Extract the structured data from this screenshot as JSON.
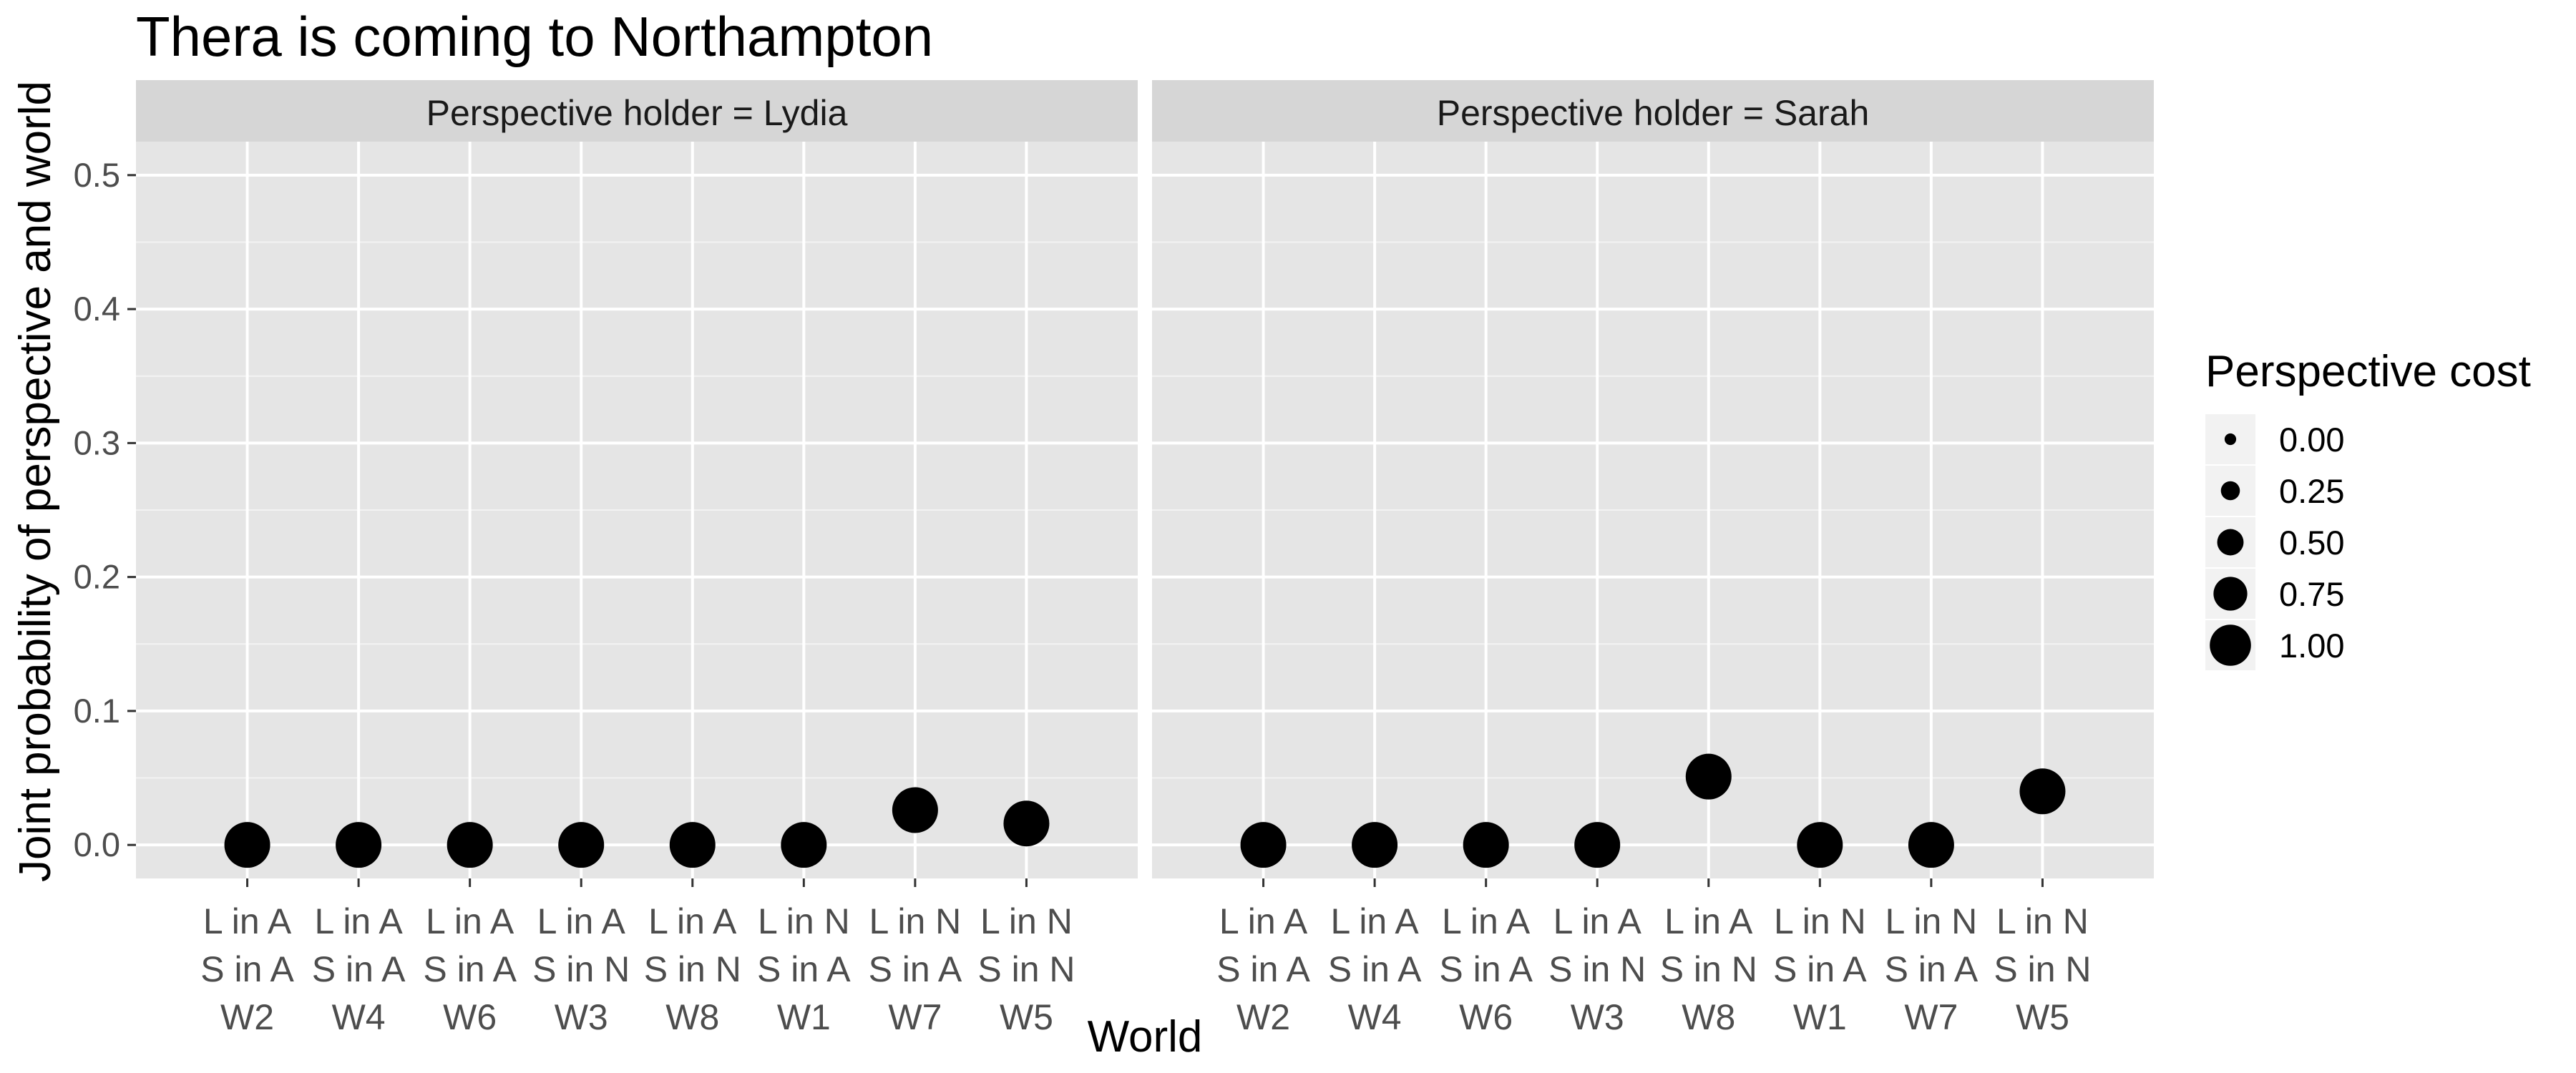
{
  "chart_data": {
    "type": "scatter",
    "title": "Thera is coming to Northampton",
    "xlabel": "World",
    "ylabel": "Joint probability of perspective and world",
    "ylim": [
      -0.025,
      0.525
    ],
    "yticks": [
      "0.0",
      "0.1",
      "0.2",
      "0.3",
      "0.4",
      "0.5"
    ],
    "ytick_values": [
      0.0,
      0.1,
      0.2,
      0.3,
      0.4,
      0.5
    ],
    "grid": true,
    "categories": [
      {
        "line1": "L in A",
        "line2": "S in A",
        "line3": "W2"
      },
      {
        "line1": "L in A",
        "line2": "S in A",
        "line3": "W4"
      },
      {
        "line1": "L in A",
        "line2": "S in A",
        "line3": "W6"
      },
      {
        "line1": "L in A",
        "line2": "S in N",
        "line3": "W3"
      },
      {
        "line1": "L in A",
        "line2": "S in N",
        "line3": "W8"
      },
      {
        "line1": "L in N",
        "line2": "S in A",
        "line3": "W1"
      },
      {
        "line1": "L in N",
        "line2": "S in A",
        "line3": "W7"
      },
      {
        "line1": "L in N",
        "line2": "S in N",
        "line3": "W5"
      }
    ],
    "panels": [
      {
        "strip": "Perspective holder = Lydia",
        "points": [
          {
            "x": "W2",
            "values": [
              0.0,
              0.0,
              0.0,
              0.0,
              0.0
            ]
          },
          {
            "x": "W4",
            "values": [
              0.0,
              0.0,
              0.0,
              0.0,
              0.0
            ]
          },
          {
            "x": "W6",
            "values": [
              0.0,
              0.0,
              0.0,
              0.0,
              0.0
            ]
          },
          {
            "x": "W3",
            "values": [
              0.0,
              0.0,
              0.0,
              0.0,
              0.0
            ]
          },
          {
            "x": "W8",
            "values": [
              0.0,
              0.0,
              0.0,
              0.0,
              0.0
            ]
          },
          {
            "x": "W1",
            "values": [
              0.0,
              0.0,
              0.0,
              0.0,
              0.0
            ]
          },
          {
            "x": "W7",
            "values": [
              0.034,
              0.032,
              0.03,
              0.028,
              0.026
            ]
          },
          {
            "x": "W5",
            "values": [
              0.024,
              0.022,
              0.02,
              0.018,
              0.016
            ]
          }
        ]
      },
      {
        "strip": "Perspective holder = Sarah",
        "points": [
          {
            "x": "W2",
            "values": [
              0.0,
              0.0,
              0.0,
              0.0,
              0.0
            ]
          },
          {
            "x": "W4",
            "values": [
              0.0,
              0.0,
              0.0,
              0.0,
              0.0
            ]
          },
          {
            "x": "W6",
            "values": [
              0.0,
              0.0,
              0.0,
              0.0,
              0.0
            ]
          },
          {
            "x": "W3",
            "values": [
              0.0,
              0.0,
              0.0,
              0.0,
              0.0
            ]
          },
          {
            "x": "W8",
            "values": [
              0.055,
              0.054,
              0.053,
              0.052,
              0.051
            ]
          },
          {
            "x": "W1",
            "values": [
              0.0,
              0.0,
              0.0,
              0.0,
              0.0
            ]
          },
          {
            "x": "W7",
            "values": [
              0.0,
              0.0,
              0.0,
              0.0,
              0.0
            ]
          },
          {
            "x": "W5",
            "values": [
              0.048,
              0.046,
              0.044,
              0.042,
              0.04
            ]
          }
        ]
      }
    ],
    "size_legend": {
      "title": "Perspective cost",
      "labels": [
        "0.00",
        "0.25",
        "0.50",
        "0.75",
        "1.00"
      ],
      "values": [
        0.0,
        0.25,
        0.5,
        0.75,
        1.0
      ]
    },
    "colors": {
      "panel_bg": "#e5e5e5",
      "strip_bg": "#d6d6d6",
      "grid_major": "#ffffff",
      "point": "#000000"
    }
  }
}
